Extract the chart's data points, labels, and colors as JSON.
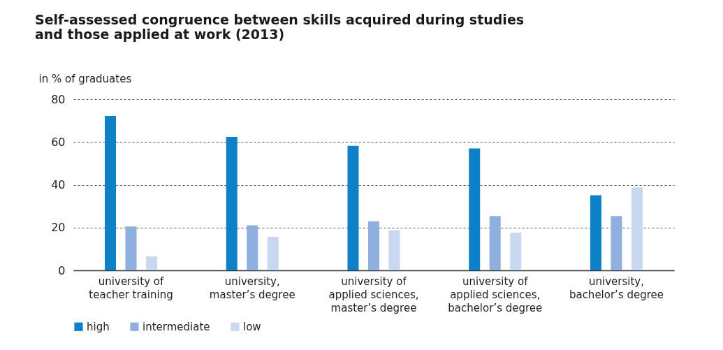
{
  "chart_data": {
    "type": "bar",
    "title": "Self-assessed congruence between skills acquired during studies\nand those applied at work (2013)",
    "ylabel": "in % of graduates",
    "categories": [
      "university of\nteacher training",
      "university,\nmaster’s degree",
      "university of\napplied sciences,\nmaster’s degree",
      "university of\napplied sciences,\nbachelor’s degree",
      "university,\nbachelor’s degree"
    ],
    "series": [
      {
        "name": "high",
        "color": "#0d80c8",
        "values": [
          72.2,
          62.4,
          58.2,
          57.0,
          35.1
        ]
      },
      {
        "name": "intermediate",
        "color": "#8fb0de",
        "values": [
          20.5,
          21.1,
          22.9,
          25.4,
          25.4
        ]
      },
      {
        "name": "low",
        "color": "#c8d8f0",
        "values": [
          6.5,
          15.7,
          18.7,
          17.6,
          38.8
        ]
      }
    ],
    "ylim": [
      0,
      80
    ],
    "yticks": [
      0,
      20,
      40,
      60,
      80
    ],
    "grid": "y",
    "legend": "bottom left"
  }
}
